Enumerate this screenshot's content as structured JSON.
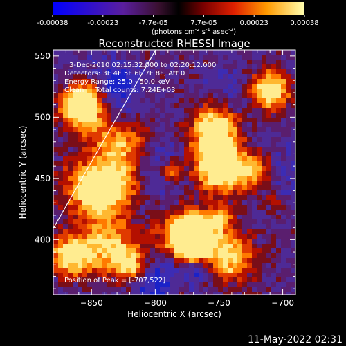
{
  "colorbar": {
    "ticks": [
      "-0.00038",
      "-0.00023",
      "-7.7e-05",
      "7.7e-05",
      "0.00023",
      "0.00038"
    ],
    "units_prefix": "(photons cm",
    "units_exp1": "-2",
    "units_mid": " s",
    "units_exp2": "-1",
    "units_mid2": " asec",
    "units_exp3": "-2",
    "units_suffix": ")"
  },
  "title": "Reconstructed RHESSI Image",
  "info_lines": [
    "3-Dec-2010 02:15:32.000 to 02:20:12.000",
    "Detectors: 3F 4F 5F 6F 7F 8F, Att 0",
    "Energy Range: 25.0 - 50.0 keV",
    "Clean     Total counts: 7.24E+03"
  ],
  "peak_label": "Position of Peak = [-707,522]",
  "axes": {
    "xlabel": "Heliocentric X (arcsec)",
    "ylabel": "Heliocentric Y (arcsec)",
    "xlim": [
      -880,
      -690
    ],
    "ylim": [
      355,
      555
    ],
    "xticks": [
      -850,
      -800,
      -750,
      -700
    ],
    "xtick_labels": [
      "−850",
      "−800",
      "−750",
      "−700"
    ],
    "yticks": [
      400,
      450,
      500,
      550
    ],
    "ytick_labels": [
      "400",
      "450",
      "500",
      "550"
    ]
  },
  "timestamp": "11-May-2022 02:31",
  "colors": {
    "background": "#000000",
    "foreground": "#ffffff",
    "limb_line": "#ffffff"
  }
}
